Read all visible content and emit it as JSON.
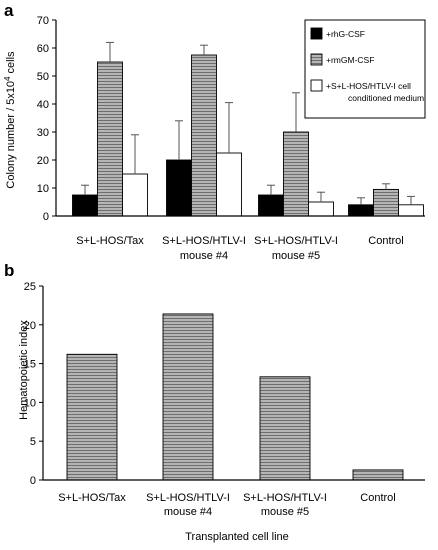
{
  "chart_data": [
    {
      "panel_label": "a",
      "type": "bar",
      "categories": [
        [
          "S+L-HOS/Tax"
        ],
        [
          "S+L-HOS/HTLV-I",
          "mouse #4"
        ],
        [
          "S+L-HOS/HTLV-I",
          "mouse #5"
        ],
        [
          "Control"
        ]
      ],
      "series": [
        {
          "name": "+rhG-CSF",
          "values": [
            7.5,
            20,
            7.5,
            4
          ],
          "errors": [
            3.5,
            14,
            3.5,
            2.5
          ],
          "color": "#000000"
        },
        {
          "name": "+rmGM-CSF",
          "values": [
            55,
            57.5,
            30,
            9.5
          ],
          "errors": [
            7,
            3.5,
            14,
            2
          ],
          "color": "#8a8a8a"
        },
        {
          "name": "+S+L-HOS/HTLV-I cell conditioned medium",
          "legend_lines": [
            "+S+L-HOS/HTLV-I cell",
            "conditioned medium"
          ],
          "values": [
            15,
            22.5,
            5,
            4
          ],
          "errors": [
            14,
            18,
            3.5,
            3
          ],
          "color": "#ffffff"
        }
      ],
      "ylabel_parts": {
        "pre": "Colony number / 5x10",
        "sup": "4",
        "post": " cells"
      },
      "ylim": [
        0,
        70
      ],
      "yticks": [
        0,
        10,
        20,
        30,
        40,
        50,
        60,
        70
      ],
      "legend_position": "top-right"
    },
    {
      "panel_label": "b",
      "type": "bar",
      "categories": [
        [
          "S+L-HOS/Tax"
        ],
        [
          "S+L-HOS/HTLV-I",
          "mouse #4"
        ],
        [
          "S+L-HOS/HTLV-I",
          "mouse #5"
        ],
        [
          "Control"
        ]
      ],
      "series": [
        {
          "values": [
            16.2,
            21.4,
            13.3,
            1.3
          ],
          "color": "#8a8a8a"
        }
      ],
      "xlabel": "Transplanted cell line",
      "ylabel": "Hematopoietic index",
      "ylim": [
        0,
        25
      ],
      "yticks": [
        0,
        5,
        10,
        15,
        20,
        25
      ]
    }
  ]
}
